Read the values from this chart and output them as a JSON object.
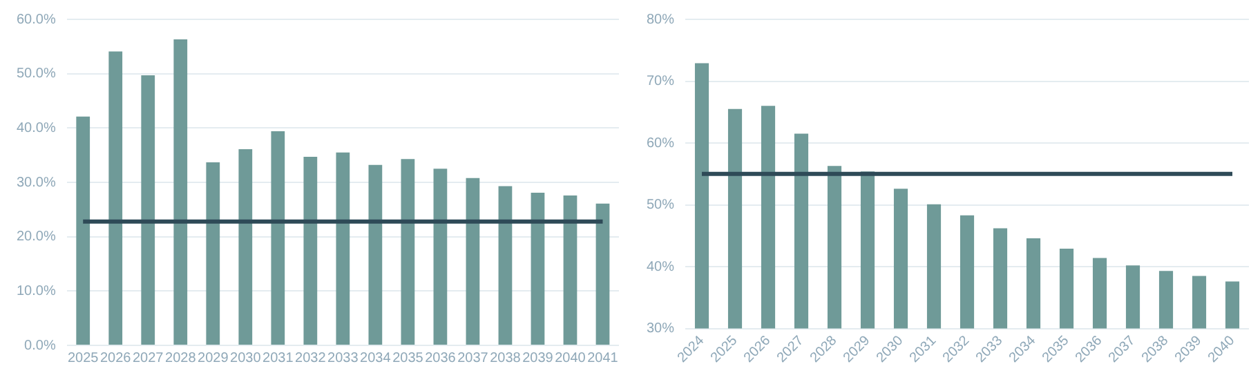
{
  "chart_data": [
    {
      "type": "bar",
      "categories": [
        "2025",
        "2026",
        "2027",
        "2028",
        "2029",
        "2030",
        "2031",
        "2032",
        "2033",
        "2034",
        "2035",
        "2036",
        "2037",
        "2038",
        "2039",
        "2040",
        "2041"
      ],
      "series": [
        {
          "color": "#6f9a98",
          "values": [
            42.1,
            54.1,
            49.7,
            56.3,
            33.7,
            36.1,
            39.4,
            34.7,
            35.5,
            33.2,
            34.3,
            32.5,
            30.8,
            29.3,
            28.1,
            27.6,
            26.1
          ]
        },
        {
          "type": "line",
          "color": "#2e4a57",
          "values": [
            22.8,
            22.8,
            22.8,
            22.8,
            22.8,
            22.8,
            22.8,
            22.8,
            22.8,
            22.8,
            22.8,
            22.8,
            22.8,
            22.8,
            22.8,
            22.8,
            22.8
          ]
        }
      ],
      "ylim": [
        0,
        60
      ],
      "yticks": [
        {
          "value": 0,
          "label": "0.0%"
        },
        {
          "value": 10,
          "label": "10.0%"
        },
        {
          "value": 20,
          "label": "20.0%"
        },
        {
          "value": 30,
          "label": "30.0%"
        },
        {
          "value": 40,
          "label": "40.0%"
        },
        {
          "value": 50,
          "label": "50.0%"
        },
        {
          "value": 60,
          "label": "60.0%"
        }
      ],
      "grid": "y",
      "legend": false,
      "marker": "none"
    },
    {
      "type": "bar",
      "categories": [
        "2024",
        "2025",
        "2026",
        "2027",
        "2028",
        "2029",
        "2030",
        "2031",
        "2032",
        "2033",
        "2034",
        "2035",
        "2036",
        "2037",
        "2038",
        "2039",
        "2040"
      ],
      "series": [
        {
          "color": "#6f9a98",
          "values": [
            72.9,
            65.5,
            66.0,
            61.5,
            56.3,
            55.4,
            52.6,
            50.1,
            48.3,
            46.2,
            44.6,
            42.9,
            41.4,
            40.2,
            39.3,
            38.5,
            37.6
          ]
        },
        {
          "type": "line",
          "color": "#2e4a57",
          "values": [
            55.0,
            55.0,
            55.0,
            55.0,
            55.0,
            55.0,
            55.0,
            55.0,
            55.0,
            55.0,
            55.0,
            55.0,
            55.0,
            55.0,
            55.0,
            55.0,
            55.0
          ]
        }
      ],
      "ylim": [
        30,
        80
      ],
      "yticks": [
        {
          "value": 30,
          "label": "30%"
        },
        {
          "value": 40,
          "label": "40%"
        },
        {
          "value": 50,
          "label": "50%"
        },
        {
          "value": 60,
          "label": "60%"
        },
        {
          "value": 70,
          "label": "70%"
        },
        {
          "value": 80,
          "label": "80%"
        }
      ],
      "grid": "y",
      "legend": false,
      "marker": "none"
    }
  ]
}
